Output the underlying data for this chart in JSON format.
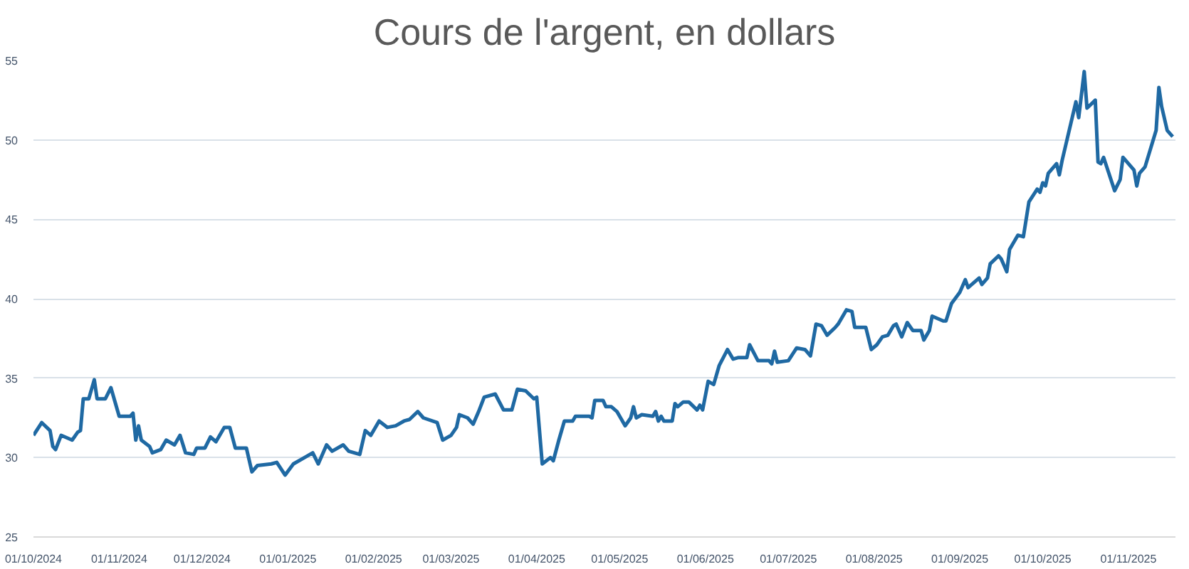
{
  "chart_data": {
    "type": "line",
    "title": "Cours de l'argent, en dollars",
    "xlim": [
      "2024-10-01",
      "2025-11-18"
    ],
    "ylim": [
      25,
      55
    ],
    "xticks": [
      {
        "value": "2024-10-01",
        "label": "01/10/2024"
      },
      {
        "value": "2024-11-01",
        "label": "01/11/2024"
      },
      {
        "value": "2024-12-01",
        "label": "01/12/2024"
      },
      {
        "value": "2025-01-01",
        "label": "01/01/2025"
      },
      {
        "value": "2025-02-01",
        "label": "01/02/2025"
      },
      {
        "value": "2025-03-01",
        "label": "01/03/2025"
      },
      {
        "value": "2025-04-01",
        "label": "01/04/2025"
      },
      {
        "value": "2025-05-01",
        "label": "01/05/2025"
      },
      {
        "value": "2025-06-01",
        "label": "01/06/2025"
      },
      {
        "value": "2025-07-01",
        "label": "01/07/2025"
      },
      {
        "value": "2025-08-01",
        "label": "01/08/2025"
      },
      {
        "value": "2025-09-01",
        "label": "01/09/2025"
      },
      {
        "value": "2025-10-01",
        "label": "01/10/2025"
      },
      {
        "value": "2025-11-01",
        "label": "01/11/2025"
      }
    ],
    "yticks": [
      25,
      30,
      35,
      40,
      45,
      50,
      55
    ],
    "grid": "y",
    "line_style": "solid",
    "marker": "none",
    "x": [
      "2024-10-01",
      "2024-10-04",
      "2024-10-07",
      "2024-10-08",
      "2024-10-09",
      "2024-10-11",
      "2024-10-15",
      "2024-10-17",
      "2024-10-18",
      "2024-10-19",
      "2024-10-21",
      "2024-10-23",
      "2024-10-24",
      "2024-10-27",
      "2024-10-29",
      "2024-11-01",
      "2024-11-05",
      "2024-11-06",
      "2024-11-07",
      "2024-11-08",
      "2024-11-09",
      "2024-11-12",
      "2024-11-13",
      "2024-11-16",
      "2024-11-18",
      "2024-11-21",
      "2024-11-23",
      "2024-11-25",
      "2024-11-28",
      "2024-11-29",
      "2024-12-02",
      "2024-12-04",
      "2024-12-06",
      "2024-12-09",
      "2024-12-11",
      "2024-12-13",
      "2024-12-17",
      "2024-12-19",
      "2024-12-21",
      "2024-12-26",
      "2024-12-28",
      "2024-12-31",
      "2025-01-03",
      "2025-01-07",
      "2025-01-10",
      "2025-01-12",
      "2025-01-15",
      "2025-01-17",
      "2025-01-21",
      "2025-01-23",
      "2025-01-27",
      "2025-01-29",
      "2025-01-31",
      "2025-02-03",
      "2025-02-06",
      "2025-02-09",
      "2025-02-12",
      "2025-02-14",
      "2025-02-17",
      "2025-02-19",
      "2025-02-24",
      "2025-02-26",
      "2025-03-01",
      "2025-03-03",
      "2025-03-04",
      "2025-03-07",
      "2025-03-09",
      "2025-03-11",
      "2025-03-13",
      "2025-03-17",
      "2025-03-20",
      "2025-03-23",
      "2025-03-25",
      "2025-03-28",
      "2025-03-31",
      "2025-04-01",
      "2025-04-03",
      "2025-04-06",
      "2025-04-07",
      "2025-04-09",
      "2025-04-11",
      "2025-04-14",
      "2025-04-15",
      "2025-04-20",
      "2025-04-21",
      "2025-04-22",
      "2025-04-25",
      "2025-04-26",
      "2025-04-28",
      "2025-04-30",
      "2025-05-03",
      "2025-05-05",
      "2025-05-06",
      "2025-05-07",
      "2025-05-09",
      "2025-05-13",
      "2025-05-14",
      "2025-05-15",
      "2025-05-16",
      "2025-05-17",
      "2025-05-20",
      "2025-05-21",
      "2025-05-22",
      "2025-05-24",
      "2025-05-26",
      "2025-05-29",
      "2025-05-30",
      "2025-05-31",
      "2025-06-02",
      "2025-06-04",
      "2025-06-06",
      "2025-06-09",
      "2025-06-11",
      "2025-06-13",
      "2025-06-16",
      "2025-06-17",
      "2025-06-20",
      "2025-06-24",
      "2025-06-25",
      "2025-06-26",
      "2025-06-27",
      "2025-07-01",
      "2025-07-04",
      "2025-07-07",
      "2025-07-09",
      "2025-07-11",
      "2025-07-13",
      "2025-07-15",
      "2025-07-18",
      "2025-07-19",
      "2025-07-22",
      "2025-07-24",
      "2025-07-25",
      "2025-07-29",
      "2025-07-31",
      "2025-08-02",
      "2025-08-04",
      "2025-08-06",
      "2025-08-08",
      "2025-08-09",
      "2025-08-11",
      "2025-08-13",
      "2025-08-15",
      "2025-08-18",
      "2025-08-19",
      "2025-08-21",
      "2025-08-22",
      "2025-08-26",
      "2025-08-27",
      "2025-08-29",
      "2025-09-01",
      "2025-09-03",
      "2025-09-04",
      "2025-09-06",
      "2025-09-08",
      "2025-09-09",
      "2025-09-11",
      "2025-09-12",
      "2025-09-15",
      "2025-09-16",
      "2025-09-18",
      "2025-09-19",
      "2025-09-22",
      "2025-09-24",
      "2025-09-26",
      "2025-09-29",
      "2025-09-30",
      "2025-10-01",
      "2025-10-02",
      "2025-10-03",
      "2025-10-06",
      "2025-10-07",
      "2025-10-08",
      "2025-10-13",
      "2025-10-14",
      "2025-10-16",
      "2025-10-17",
      "2025-10-20",
      "2025-10-21",
      "2025-10-22",
      "2025-10-23",
      "2025-10-27",
      "2025-10-29",
      "2025-10-30",
      "2025-11-03",
      "2025-11-04",
      "2025-11-05",
      "2025-11-07",
      "2025-11-11",
      "2025-11-12",
      "2025-11-13",
      "2025-11-15",
      "2025-11-17"
    ],
    "series": [
      {
        "color": "#1f69a3",
        "values": [
          31.4,
          32.2,
          31.7,
          30.7,
          30.5,
          31.4,
          31.1,
          31.6,
          31.7,
          33.7,
          33.7,
          34.9,
          33.7,
          33.7,
          34.4,
          32.6,
          32.6,
          32.8,
          31.1,
          32.0,
          31.1,
          30.7,
          30.3,
          30.5,
          31.1,
          30.8,
          31.4,
          30.3,
          30.2,
          30.6,
          30.6,
          31.3,
          31.0,
          31.9,
          31.9,
          30.6,
          30.6,
          29.1,
          29.5,
          29.6,
          29.7,
          28.9,
          29.6,
          30.0,
          30.3,
          29.6,
          30.8,
          30.4,
          30.8,
          30.4,
          30.2,
          31.7,
          31.4,
          32.3,
          31.9,
          32.0,
          32.3,
          32.4,
          32.9,
          32.5,
          32.2,
          31.1,
          31.4,
          31.9,
          32.7,
          32.5,
          32.1,
          32.9,
          33.8,
          34.0,
          33.0,
          33.0,
          34.3,
          34.2,
          33.7,
          33.8,
          29.6,
          30.0,
          29.8,
          31.1,
          32.3,
          32.3,
          32.6,
          32.6,
          32.5,
          33.6,
          33.6,
          33.2,
          33.2,
          32.9,
          32.0,
          32.5,
          33.2,
          32.5,
          32.7,
          32.6,
          32.9,
          32.3,
          32.6,
          32.3,
          32.3,
          33.4,
          33.2,
          33.5,
          33.5,
          33.0,
          33.3,
          33.0,
          34.8,
          34.6,
          35.8,
          36.8,
          36.2,
          36.3,
          36.3,
          37.1,
          36.1,
          36.1,
          35.9,
          36.7,
          36.0,
          36.1,
          36.9,
          36.8,
          36.4,
          38.4,
          38.3,
          37.7,
          38.2,
          38.4,
          39.3,
          39.2,
          38.2,
          38.2,
          36.8,
          37.1,
          37.6,
          37.7,
          38.3,
          38.4,
          37.6,
          38.5,
          38.0,
          38.0,
          37.4,
          38.0,
          38.9,
          38.6,
          38.6,
          39.7,
          40.4,
          41.2,
          40.7,
          41.0,
          41.3,
          40.9,
          41.3,
          42.2,
          42.7,
          42.5,
          41.7,
          43.1,
          44.0,
          43.9,
          46.1,
          46.9,
          46.7,
          47.3,
          47.1,
          47.9,
          48.5,
          47.8,
          48.7,
          52.4,
          51.4,
          54.3,
          52.0,
          52.5,
          48.6,
          48.5,
          48.9,
          46.8,
          47.5,
          48.9,
          48.1,
          47.1,
          47.9,
          48.3,
          50.6,
          53.3,
          52.1,
          50.6,
          50.2
        ]
      }
    ]
  }
}
